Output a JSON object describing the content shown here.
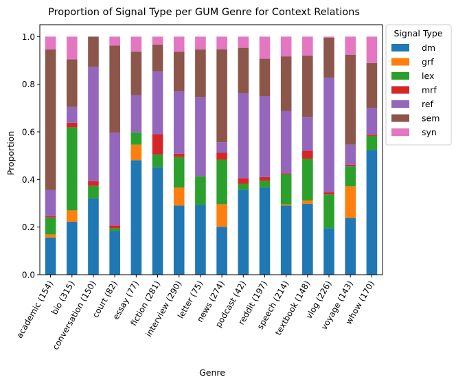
{
  "chart_data": {
    "type": "bar",
    "stacked": true,
    "title": "Proportion of Signal Type per GUM Genre for Context Relations",
    "xlabel": "Genre",
    "ylabel": "Proportion",
    "ylim": [
      0,
      1.05
    ],
    "yticks": [
      "0.0",
      "0.2",
      "0.4",
      "0.6",
      "0.8",
      "1.0"
    ],
    "categories": [
      "academic (154)",
      "bio (315)",
      "conversation (150)",
      "court (82)",
      "essay (77)",
      "fiction (281)",
      "interview (290)",
      "letter (75)",
      "news (274)",
      "podcast (42)",
      "reddit (197)",
      "speech (214)",
      "textbook (148)",
      "vlog (226)",
      "voyage (143)",
      "whow (170)"
    ],
    "legend": {
      "title": "Signal Type",
      "placement": "outside-right"
    },
    "series": [
      {
        "name": "dm",
        "color": "#1f77b4",
        "values": [
          0.156,
          0.222,
          0.32,
          0.183,
          0.481,
          0.452,
          0.29,
          0.293,
          0.201,
          0.357,
          0.365,
          0.29,
          0.297,
          0.195,
          0.238,
          0.524
        ]
      },
      {
        "name": "grf",
        "color": "#ff7f0e",
        "values": [
          0.013,
          0.048,
          0.0,
          0.0,
          0.065,
          0.0,
          0.076,
          0.0,
          0.095,
          0.0,
          0.0,
          0.005,
          0.014,
          0.0,
          0.133,
          0.0
        ]
      },
      {
        "name": "lex",
        "color": "#2ca02c",
        "values": [
          0.071,
          0.349,
          0.053,
          0.012,
          0.052,
          0.053,
          0.128,
          0.12,
          0.187,
          0.024,
          0.03,
          0.126,
          0.176,
          0.142,
          0.084,
          0.059
        ]
      },
      {
        "name": "mrf",
        "color": "#d62728",
        "values": [
          0.006,
          0.019,
          0.02,
          0.012,
          0.0,
          0.085,
          0.014,
          0.0,
          0.029,
          0.024,
          0.015,
          0.005,
          0.034,
          0.009,
          0.007,
          0.006
        ]
      },
      {
        "name": "ref",
        "color": "#9467bd",
        "values": [
          0.11,
          0.067,
          0.48,
          0.39,
          0.156,
          0.263,
          0.262,
          0.333,
          0.044,
          0.357,
          0.34,
          0.262,
          0.142,
          0.482,
          0.084,
          0.112
        ]
      },
      {
        "name": "sem",
        "color": "#8c564b",
        "values": [
          0.59,
          0.2,
          0.127,
          0.365,
          0.182,
          0.114,
          0.166,
          0.2,
          0.391,
          0.191,
          0.157,
          0.229,
          0.257,
          0.168,
          0.378,
          0.188
        ]
      },
      {
        "name": "syn",
        "color": "#e377c2",
        "values": [
          0.054,
          0.095,
          0.0,
          0.038,
          0.064,
          0.033,
          0.064,
          0.054,
          0.053,
          0.047,
          0.093,
          0.083,
          0.08,
          0.004,
          0.076,
          0.111
        ]
      }
    ]
  }
}
